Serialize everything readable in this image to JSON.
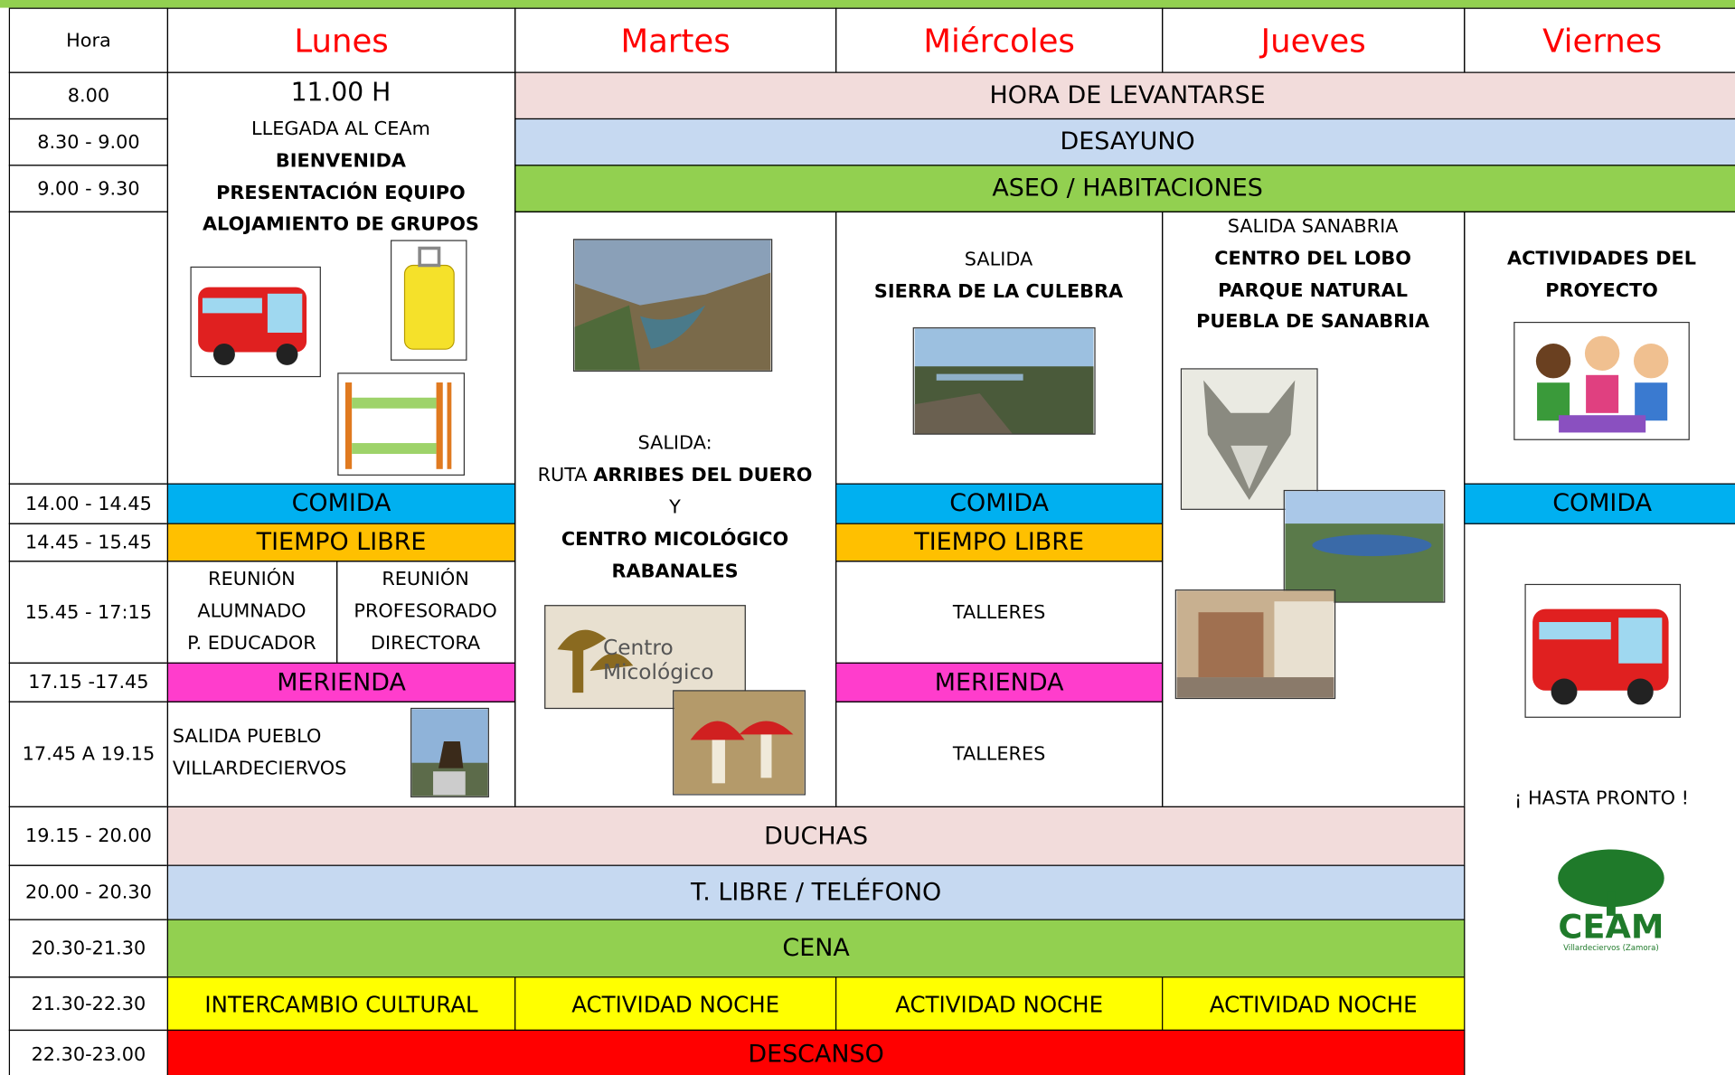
{
  "header": {
    "hour_label": "Hora",
    "days": [
      "Lunes",
      "Martes",
      "Miércoles",
      "Jueves",
      "Viernes"
    ]
  },
  "times": [
    "8.00",
    "8.30 - 9.00",
    "9.00 - 9.30",
    "14.00 - 14.45",
    "14.45 - 15.45",
    "15.45 - 17:15",
    "17.15 -17.45",
    "17.45 A 19.15",
    "19.15 - 20.00",
    "20.00 - 20.30",
    "20.30-21.30",
    "21.30-22.30",
    "22.30-23.00"
  ],
  "bands": {
    "wake": "HORA DE LEVANTARSE",
    "breakfast": "DESAYUNO",
    "hygiene": "ASEO / HABITACIONES",
    "lunch": "COMIDA",
    "free_time": "TIEMPO LIBRE",
    "snack": "MERIENDA",
    "showers": "DUCHAS",
    "phone": "T. LIBRE / TELÉFONO",
    "dinner": "CENA",
    "cultural": "INTERCAMBIO CULTURAL",
    "night": "ACTIVIDAD NOCHE",
    "rest": "DESCANSO"
  },
  "monday": {
    "time": "11.00 H",
    "lines": [
      "LLEGADA AL CEAm",
      "BIENVENIDA",
      "PRESENTACIÓN EQUIPO",
      "ALOJAMIENTO DE GRUPOS"
    ],
    "meeting_students": [
      "REUNIÓN",
      "ALUMNADO",
      "P. EDUCADOR"
    ],
    "meeting_teachers": [
      "REUNIÓN",
      "PROFESORADO",
      "DIRECTORA"
    ],
    "outing": [
      "SALIDA PUEBLO",
      "VILLARDECIERVOS"
    ]
  },
  "tuesday": {
    "outing": "SALIDA:",
    "route_prefix": "RUTA",
    "route": "ARRIBES DEL DUERO",
    "and": "Y",
    "center": "CENTRO MICOLÓGICO",
    "place": "RABANALES",
    "logo_text": [
      "Centro",
      "Micológico"
    ]
  },
  "wednesday": {
    "outing": [
      "SALIDA",
      "SIERRA DE LA CULEBRA"
    ],
    "workshops": "TALLERES"
  },
  "thursday": {
    "outing": [
      "SALIDA SANABRIA",
      "CENTRO DEL LOBO",
      "PARQUE NATURAL",
      "PUEBLA DE SANABRIA"
    ]
  },
  "friday": {
    "project": [
      "ACTIVIDADES DEL",
      "PROYECTO"
    ],
    "farewell": "¡ HASTA PRONTO !",
    "logo": "CEAM",
    "logo_sub": "Villardeciervos (Zamora)"
  }
}
